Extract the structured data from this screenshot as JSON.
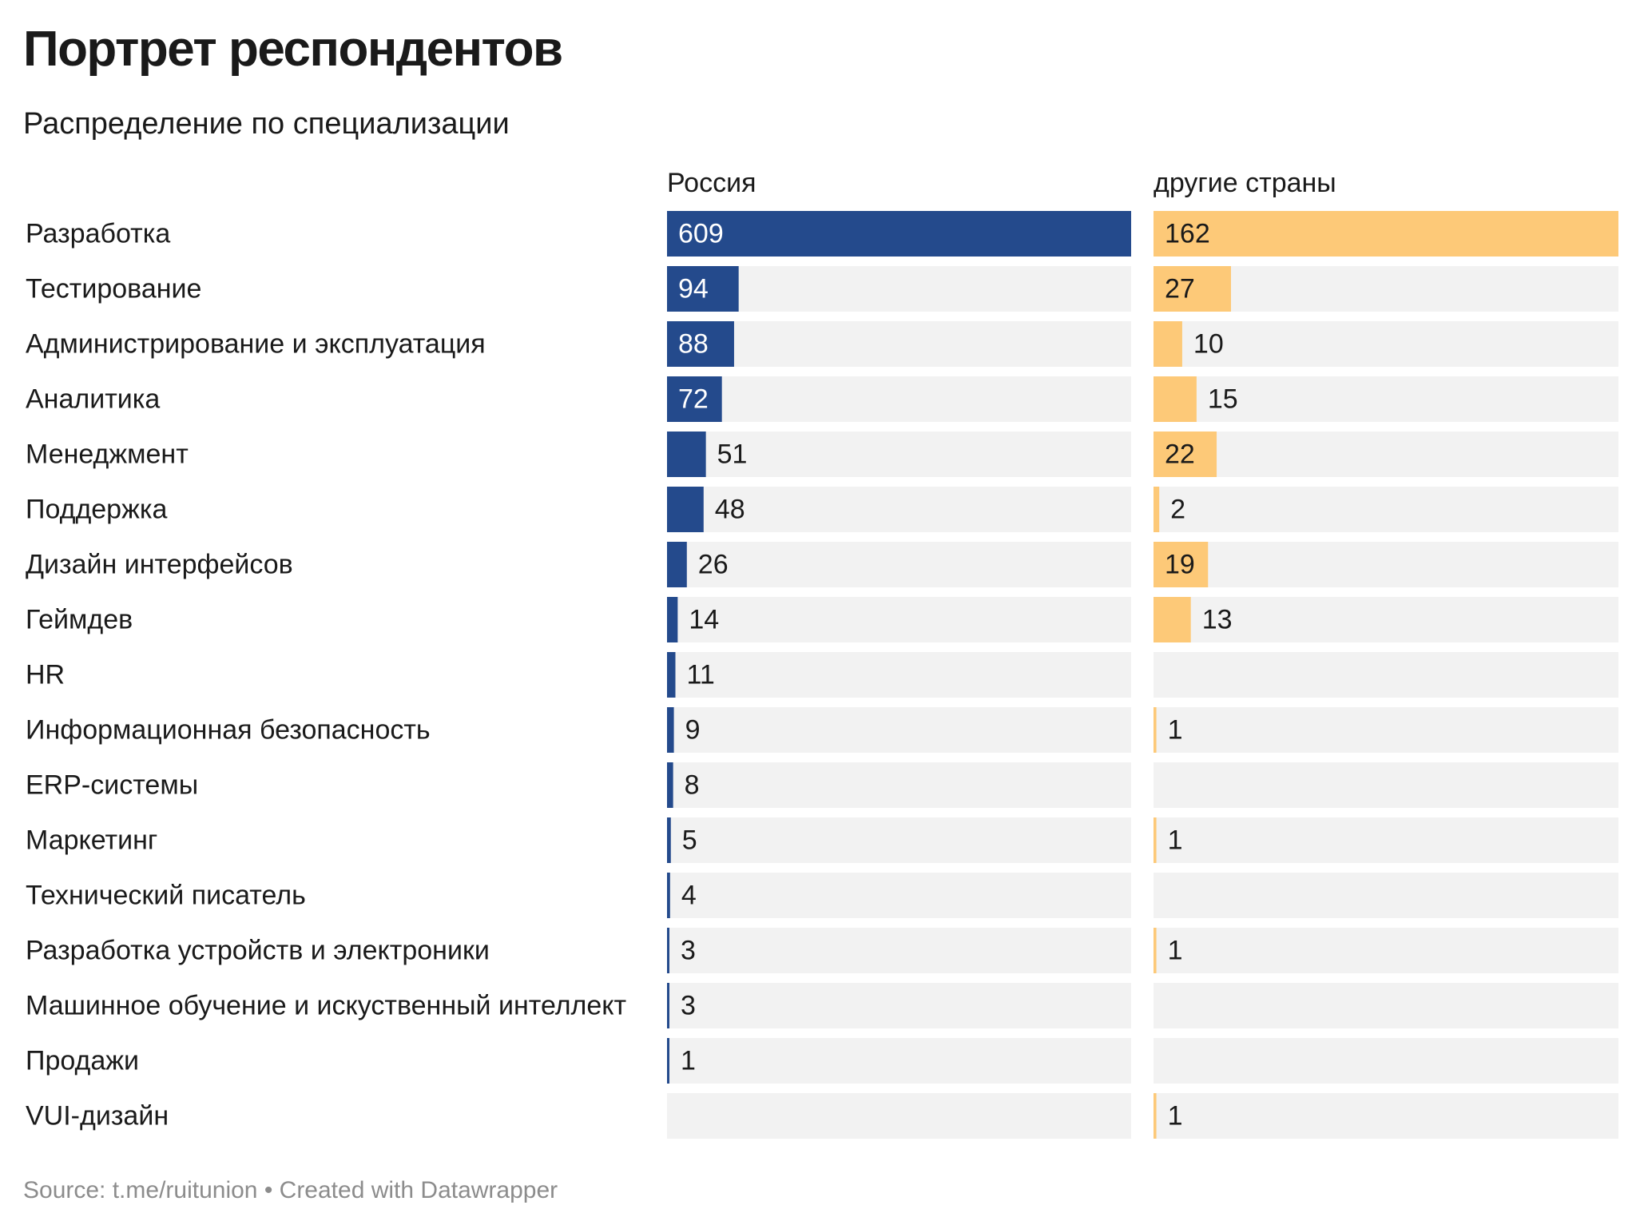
{
  "header": {
    "title": "Портрет респондентов",
    "subtitle": "Распределение по специализации"
  },
  "footer": {
    "source": "Source: t.me/ruitunion • Created with Datawrapper"
  },
  "colors": {
    "russia": "#244a8c",
    "other": "#fdc978",
    "track": "#f2f2f2",
    "label_on_bar_russia": "#ffffff",
    "label_on_bar_other": "#1a1a1a",
    "label_outside": "#1a1a1a"
  },
  "chart_data": {
    "type": "bar",
    "orientation": "horizontal",
    "title": "Портрет респондентов",
    "subtitle": "Распределение по специализации",
    "categories": [
      "Разработка",
      "Тестирование",
      "Администрирование и эксплуатация",
      "Аналитика",
      "Менеджмент",
      "Поддержка",
      "Дизайн интерфейсов",
      "Геймдев",
      "HR",
      "Информационная безопасность",
      "ERP-системы",
      "Маркетинг",
      "Технический писатель",
      "Разработка устройств и электроники",
      "Машинное обучение и искуственный интеллект",
      "Продажи",
      "VUI-дизайн"
    ],
    "series": [
      {
        "name": "Россия",
        "max": 609,
        "values": [
          609,
          94,
          88,
          72,
          51,
          48,
          26,
          14,
          11,
          9,
          8,
          5,
          4,
          3,
          3,
          1,
          null
        ]
      },
      {
        "name": "другие страны",
        "max": 162,
        "values": [
          162,
          27,
          10,
          15,
          22,
          2,
          19,
          13,
          null,
          1,
          null,
          1,
          null,
          1,
          null,
          null,
          1
        ]
      }
    ],
    "legend": "column headers",
    "grid": false
  }
}
